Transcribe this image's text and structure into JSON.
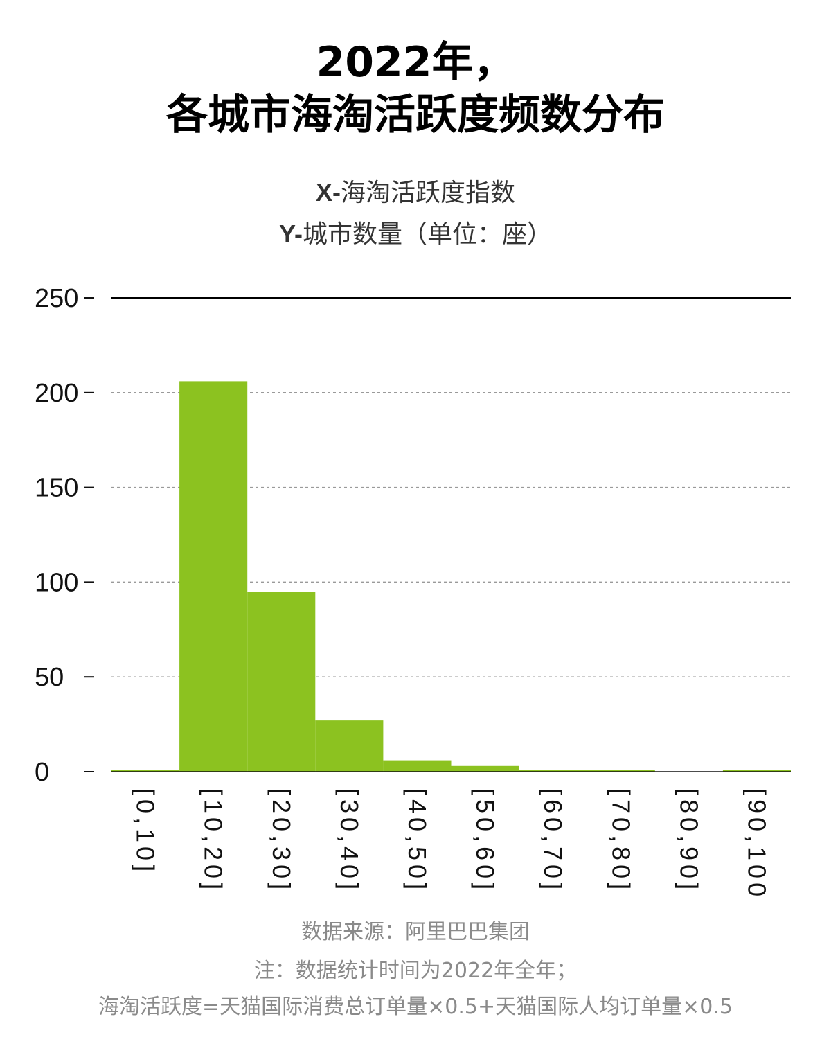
{
  "title_line1": "2022年，",
  "title_line2": "各城市海淘活跃度频数分布",
  "x_desc_prefix": "X-",
  "x_desc_text": "海淘活跃度指数",
  "y_desc_prefix": "Y-",
  "y_desc_text": "城市数量（单位：座）",
  "chart_data": {
    "type": "bar",
    "categories": [
      "[0,10]",
      "[10,20]",
      "[20,30]",
      "[30,40]",
      "[40,50]",
      "[50,60]",
      "[60,70]",
      "[70,80]",
      "[80,90]",
      "[90,100]"
    ],
    "values": [
      1,
      206,
      95,
      27,
      6,
      3,
      1,
      1,
      0,
      1
    ],
    "ylim": [
      0,
      250
    ],
    "yticks": [
      0,
      50,
      100,
      150,
      200,
      250
    ],
    "xlabel": "",
    "ylabel": "",
    "grid": true,
    "bar_color": "#8cc220"
  },
  "footer": {
    "source": "数据来源：阿里巴巴集团",
    "note": "注：数据统计时间为2022年全年；",
    "formula": "海淘活跃度=天猫国际消费总订单量×0.5+天猫国际人均订单量×0.5"
  }
}
